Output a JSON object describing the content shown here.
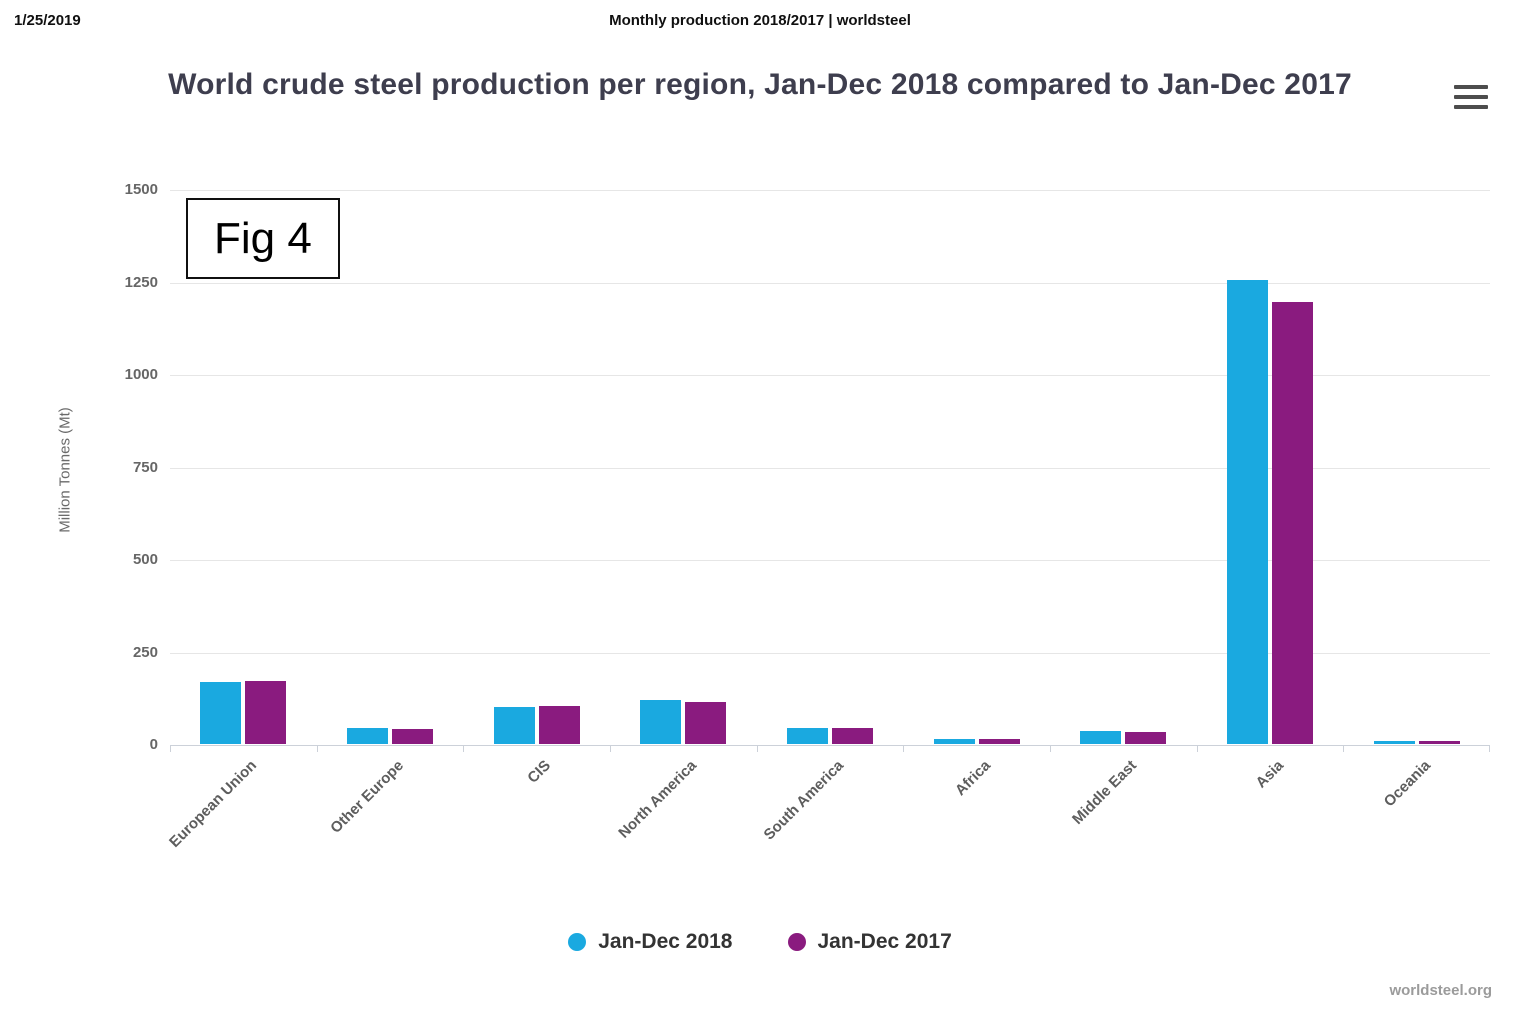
{
  "page": {
    "print_date": "1/25/2019",
    "print_title": "Monthly production 2018/2017 | worldsteel",
    "credit": "worldsteel.org"
  },
  "figure_label": "Fig 4",
  "export_menu": {
    "icon": "hamburger"
  },
  "chart_data": {
    "type": "bar",
    "title": "World crude steel production per region, Jan-Dec 2018 compared to Jan-Dec 2017",
    "xlabel": "",
    "ylabel": "Million Tonnes (Mt)",
    "ylim": [
      0,
      1500
    ],
    "yticks": [
      0,
      250,
      500,
      750,
      1000,
      1250,
      1500
    ],
    "grid": true,
    "legend_position": "bottom",
    "categories": [
      "European Union",
      "Other Europe",
      "CIS",
      "North America",
      "South America",
      "Africa",
      "Middle East",
      "Asia",
      "Oceania"
    ],
    "series": [
      {
        "name": "Jan-Dec 2018",
        "color": "#1aa9e0",
        "values": [
          168,
          42,
          100,
          120,
          44,
          14,
          35,
          1255,
          6
        ]
      },
      {
        "name": "Jan-Dec 2017",
        "color": "#8a1b7f",
        "values": [
          169,
          41,
          102,
          113,
          43,
          14,
          33,
          1195,
          6
        ]
      }
    ]
  }
}
